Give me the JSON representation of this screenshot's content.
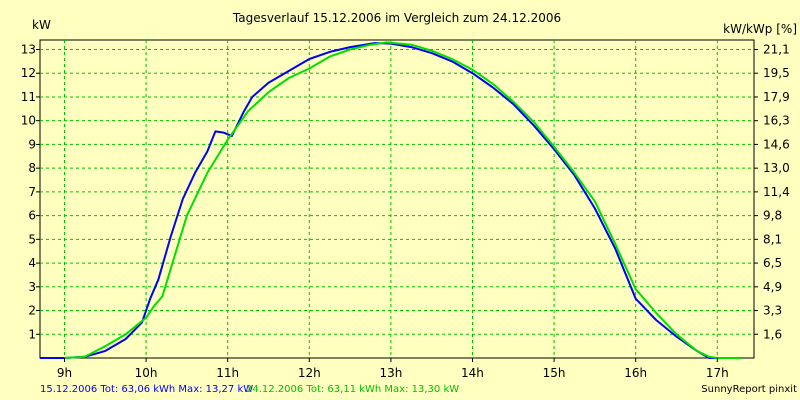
{
  "chart_data": {
    "type": "line",
    "title": "Tagesverlauf 15.12.2006 im Vergleich zum 24.12.2006",
    "ylabel_left": "kW",
    "ylabel_right": "kW/kWp [%]",
    "credit": "SunnyReport pinxit",
    "xlim": [
      8.7,
      17.45
    ],
    "ylim": [
      0,
      13.4
    ],
    "x_ticks": [
      {
        "value": 9,
        "label": "9h"
      },
      {
        "value": 10,
        "label": "10h"
      },
      {
        "value": 11,
        "label": "11h"
      },
      {
        "value": 12,
        "label": "12h"
      },
      {
        "value": 13,
        "label": "13h"
      },
      {
        "value": 14,
        "label": "14h"
      },
      {
        "value": 15,
        "label": "15h"
      },
      {
        "value": 16,
        "label": "16h"
      },
      {
        "value": 17,
        "label": "17h"
      }
    ],
    "y_ticks_left": [
      1,
      2,
      3,
      4,
      5,
      6,
      7,
      8,
      9,
      10,
      11,
      12,
      13
    ],
    "y_ticks_right": [
      {
        "value": 1.0,
        "label": "1,6"
      },
      {
        "value": 2.0,
        "label": "3,3"
      },
      {
        "value": 3.0,
        "label": "4,9"
      },
      {
        "value": 4.0,
        "label": "6,5"
      },
      {
        "value": 5.0,
        "label": "8,1"
      },
      {
        "value": 6.0,
        "label": "9,8"
      },
      {
        "value": 7.0,
        "label": "11,4"
      },
      {
        "value": 8.0,
        "label": "13,0"
      },
      {
        "value": 9.0,
        "label": "14,6"
      },
      {
        "value": 10.0,
        "label": "16,3"
      },
      {
        "value": 11.0,
        "label": "17,9"
      },
      {
        "value": 12.0,
        "label": "19,5"
      },
      {
        "value": 13.0,
        "label": "21,1"
      }
    ],
    "grid": true,
    "series": [
      {
        "legend": "15.12.2006 Tot: 63,06 kWh Max: 13,27 kW",
        "color": "#0000ff",
        "points": [
          [
            8.7,
            0.0
          ],
          [
            9.0,
            0.0
          ],
          [
            9.25,
            0.05
          ],
          [
            9.5,
            0.3
          ],
          [
            9.75,
            0.8
          ],
          [
            9.95,
            1.5
          ],
          [
            10.05,
            2.5
          ],
          [
            10.15,
            3.3
          ],
          [
            10.3,
            5.1
          ],
          [
            10.45,
            6.7
          ],
          [
            10.6,
            7.8
          ],
          [
            10.75,
            8.7
          ],
          [
            10.85,
            9.55
          ],
          [
            10.95,
            9.5
          ],
          [
            11.05,
            9.35
          ],
          [
            11.2,
            10.4
          ],
          [
            11.3,
            11.0
          ],
          [
            11.5,
            11.6
          ],
          [
            11.75,
            12.1
          ],
          [
            12.0,
            12.6
          ],
          [
            12.25,
            12.9
          ],
          [
            12.5,
            13.1
          ],
          [
            12.8,
            13.27
          ],
          [
            13.0,
            13.25
          ],
          [
            13.25,
            13.1
          ],
          [
            13.5,
            12.85
          ],
          [
            13.75,
            12.5
          ],
          [
            14.0,
            12.0
          ],
          [
            14.25,
            11.4
          ],
          [
            14.5,
            10.7
          ],
          [
            14.75,
            9.8
          ],
          [
            15.0,
            8.8
          ],
          [
            15.25,
            7.7
          ],
          [
            15.5,
            6.3
          ],
          [
            15.75,
            4.6
          ],
          [
            16.0,
            2.5
          ],
          [
            16.25,
            1.6
          ],
          [
            16.5,
            0.9
          ],
          [
            16.75,
            0.3
          ],
          [
            16.9,
            0.0
          ],
          [
            17.0,
            0.0
          ],
          [
            17.25,
            0.0
          ]
        ]
      },
      {
        "legend": "24.12.2006 Tot: 63,11 kWh Max: 13,30 kW",
        "color": "#00e000",
        "points": [
          [
            9.0,
            0.0
          ],
          [
            9.25,
            0.05
          ],
          [
            9.5,
            0.5
          ],
          [
            9.75,
            1.0
          ],
          [
            10.0,
            1.7
          ],
          [
            10.1,
            2.2
          ],
          [
            10.2,
            2.6
          ],
          [
            10.35,
            4.3
          ],
          [
            10.5,
            6.0
          ],
          [
            10.75,
            7.8
          ],
          [
            11.0,
            9.2
          ],
          [
            11.25,
            10.4
          ],
          [
            11.5,
            11.2
          ],
          [
            11.75,
            11.8
          ],
          [
            12.0,
            12.2
          ],
          [
            12.25,
            12.7
          ],
          [
            12.5,
            13.0
          ],
          [
            12.75,
            13.2
          ],
          [
            12.95,
            13.3
          ],
          [
            13.25,
            13.2
          ],
          [
            13.5,
            12.95
          ],
          [
            13.75,
            12.6
          ],
          [
            14.0,
            12.15
          ],
          [
            14.25,
            11.55
          ],
          [
            14.5,
            10.8
          ],
          [
            14.75,
            9.95
          ],
          [
            15.0,
            8.9
          ],
          [
            15.25,
            7.8
          ],
          [
            15.5,
            6.6
          ],
          [
            15.75,
            4.8
          ],
          [
            16.0,
            2.9
          ],
          [
            16.25,
            1.9
          ],
          [
            16.5,
            1.0
          ],
          [
            16.75,
            0.3
          ],
          [
            16.9,
            0.05
          ],
          [
            17.0,
            0.0
          ],
          [
            17.3,
            0.0
          ]
        ]
      }
    ]
  }
}
